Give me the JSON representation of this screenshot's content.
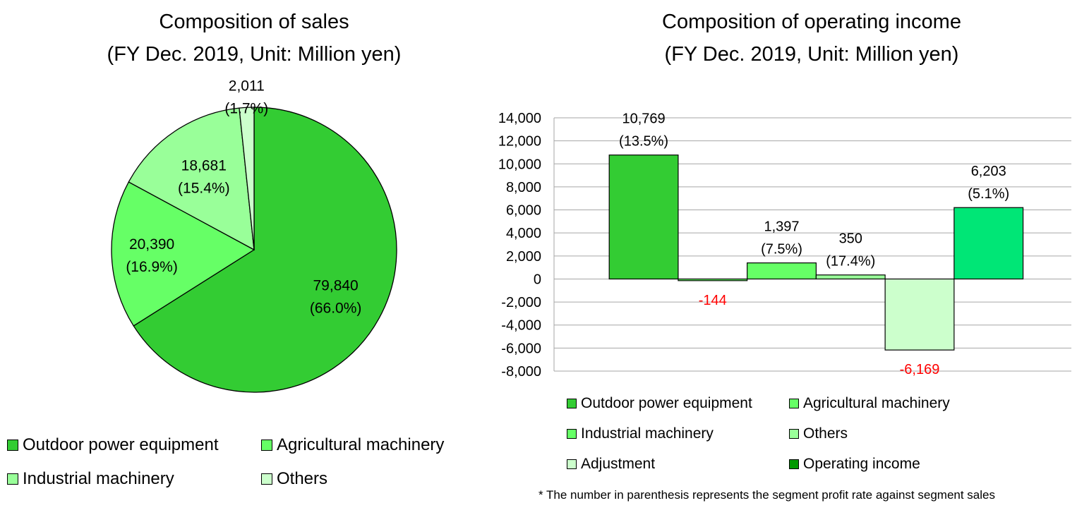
{
  "chart_data": [
    {
      "type": "pie",
      "title": "Composition of sales",
      "subtitle": "(FY Dec. 2019, Unit: Million yen)",
      "slices": [
        {
          "name": "Outdoor power equipment",
          "value": 79840,
          "value_label": "79,840",
          "pct_label": "(66.0%)",
          "color": "#33cc33"
        },
        {
          "name": "Agricultural machinery",
          "value": 20390,
          "value_label": "20,390",
          "pct_label": "(16.9%)",
          "color": "#66ff66"
        },
        {
          "name": "Industrial machinery",
          "value": 18681,
          "value_label": "18,681",
          "pct_label": "(15.4%)",
          "color": "#99ff99"
        },
        {
          "name": "Others",
          "value": 2011,
          "value_label": "2,011",
          "pct_label": "(1.7%)",
          "color": "#ccffcc"
        }
      ],
      "legend": "bottom"
    },
    {
      "type": "bar",
      "title": "Composition of operating income",
      "subtitle": "(FY Dec. 2019, Unit: Million yen)",
      "ylim": [
        -8000,
        14000
      ],
      "ytick_step": 2000,
      "ytick_labels": [
        "14,000",
        "12,000",
        "10,000",
        "8,000",
        "6,000",
        "4,000",
        "2,000",
        "0",
        "-2,000",
        "-4,000",
        "-6,000",
        "-8,000"
      ],
      "grid": true,
      "bars": [
        {
          "name": "Outdoor power equipment",
          "value": 10769,
          "value_label": "10,769",
          "rate_label": "(13.5%)",
          "color": "#33cc33"
        },
        {
          "name": "Agricultural machinery",
          "value": -144,
          "value_label": "-144",
          "rate_label": "",
          "color": "#66ff66"
        },
        {
          "name": "Industrial machinery",
          "value": 1397,
          "value_label": "1,397",
          "rate_label": "(7.5%)",
          "color": "#66ff66"
        },
        {
          "name": "Others",
          "value": 350,
          "value_label": "350",
          "rate_label": "(17.4%)",
          "color": "#99ff99"
        },
        {
          "name": "Adjustment",
          "value": -6169,
          "value_label": "-6,169",
          "rate_label": "",
          "color": "#ccffcc"
        },
        {
          "name": "Operating income",
          "value": 6203,
          "value_label": "6,203",
          "rate_label": "(5.1%)",
          "color": "#00e676"
        }
      ],
      "legend": [
        {
          "name": "Outdoor power equipment",
          "color": "#33cc33"
        },
        {
          "name": "Agricultural machinery",
          "color": "#66ff66"
        },
        {
          "name": "Industrial machinery",
          "color": "#66ff66"
        },
        {
          "name": "Others",
          "color": "#99ff99"
        },
        {
          "name": "Adjustment",
          "color": "#ccffcc"
        },
        {
          "name": "Operating income",
          "color": "#009900"
        }
      ],
      "negative_label_color": "#ff0000"
    }
  ],
  "footnote": "* The number in parenthesis represents the segment profit rate against segment sales"
}
